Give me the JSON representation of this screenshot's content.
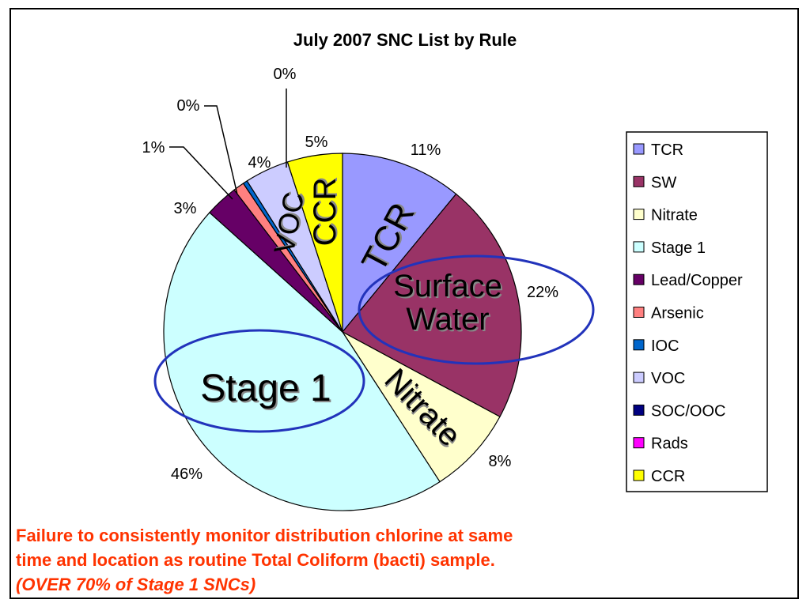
{
  "chart_data": {
    "type": "pie",
    "title": "July 2007 SNC List by Rule",
    "slices": [
      {
        "name": "TCR",
        "value": 11,
        "label": "11%",
        "color": "#9999ff",
        "inner_label": "TCR"
      },
      {
        "name": "SW",
        "value": 22,
        "label": "22%",
        "color": "#993366",
        "inner_label": "Surface Water"
      },
      {
        "name": "Nitrate",
        "value": 8,
        "label": "8%",
        "color": "#ffffcc",
        "inner_label": "Nitrate"
      },
      {
        "name": "Stage 1",
        "value": 46,
        "label": "46%",
        "color": "#ccffff",
        "inner_label": "Stage 1"
      },
      {
        "name": "Lead/Copper",
        "value": 3,
        "label": "3%",
        "color": "#660066"
      },
      {
        "name": "Arsenic",
        "value": 1,
        "label": "1%",
        "color": "#ff8080"
      },
      {
        "name": "IOC",
        "value": 0.4,
        "label": "0%",
        "color": "#0066cc"
      },
      {
        "name": "VOC",
        "value": 4,
        "label": "4%",
        "color": "#ccccff",
        "inner_label": "VOC"
      },
      {
        "name": "SOC/OOC",
        "value": 0,
        "label": "",
        "color": "#000080"
      },
      {
        "name": "Rads",
        "value": 0,
        "label": "0%",
        "color": "#ff00ff"
      },
      {
        "name": "CCR",
        "value": 5,
        "label": "5%",
        "color": "#ffff00",
        "inner_label": "CCR"
      }
    ],
    "legend": {
      "position": "right",
      "entries": [
        "TCR",
        "SW",
        "Nitrate",
        "Stage 1",
        "Lead/Copper",
        "Arsenic",
        "IOC",
        "VOC",
        "SOC/OOC",
        "Rads",
        "CCR"
      ]
    },
    "highlight_color": "#2233bb"
  },
  "caption": {
    "line1": "Failure to consistently monitor distribution chlorine at same",
    "line2": "time and location as routine Total Coliform (bacti) sample.",
    "line3": "(OVER 70% of Stage 1 SNCs)"
  }
}
